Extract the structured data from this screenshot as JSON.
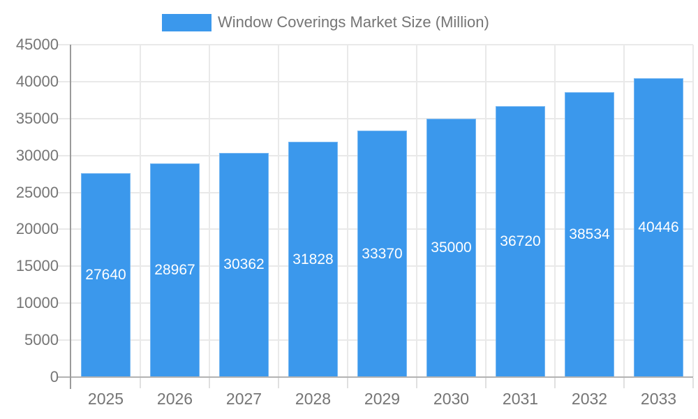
{
  "legend": {
    "label": "Window Coverings Market Size (Million)"
  },
  "chart_data": {
    "type": "bar",
    "title": "Window Coverings Market Size (Million)",
    "categories": [
      "2025",
      "2026",
      "2027",
      "2028",
      "2029",
      "2030",
      "2031",
      "2032",
      "2033"
    ],
    "values": [
      27640,
      28967,
      30362,
      31828,
      33370,
      35000,
      36720,
      38534,
      40446
    ],
    "value_labels": [
      "27640",
      "28967",
      "30362",
      "31828",
      "33370",
      "35000",
      "36720",
      "38534",
      "40446"
    ],
    "xlabel": "",
    "ylabel": "",
    "ylim": [
      0,
      45000
    ],
    "yticks": [
      0,
      5000,
      10000,
      15000,
      20000,
      25000,
      30000,
      35000,
      40000,
      45000
    ],
    "grid": true,
    "legend_position": "top",
    "bar_color": "#3b98ec",
    "value_label_color": "#ffffff",
    "axis_label_color": "#757575",
    "gridline_color": "#e9e9e9",
    "axis_line_color": "#9a9a9a",
    "baseline_color": "#b3b3b3"
  }
}
